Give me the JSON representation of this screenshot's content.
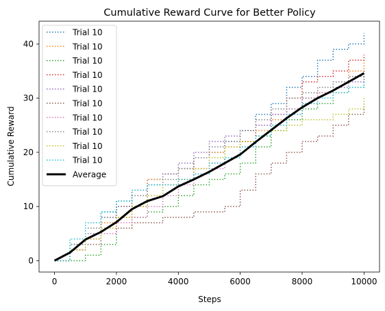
{
  "chart_data": {
    "type": "line",
    "title": "Cumulative Reward Curve for Better Policy",
    "xlabel": "Steps",
    "ylabel": "Cumulative Reward",
    "xlim": [
      -500,
      10500
    ],
    "ylim": [
      -2.1,
      44.2
    ],
    "xticks": [
      0,
      2000,
      4000,
      6000,
      8000,
      10000
    ],
    "yticks": [
      0,
      10,
      20,
      30,
      40
    ],
    "grid": false,
    "legend_position": "upper-left",
    "series": [
      {
        "name": "Trial 10",
        "color": "#1f77b4",
        "style": "dotted",
        "x": [
          0,
          500,
          1000,
          1500,
          2000,
          2500,
          3000,
          3500,
          4000,
          4500,
          5000,
          5500,
          6000,
          6500,
          7000,
          7500,
          8000,
          8500,
          9000,
          9500,
          10000
        ],
        "y": [
          0,
          3,
          6,
          9,
          11,
          13,
          15,
          16,
          17,
          19,
          20,
          22,
          24,
          27,
          29,
          32,
          34,
          37,
          39,
          40,
          42
        ]
      },
      {
        "name": "Trial 10",
        "color": "#ff7f0e",
        "style": "dotted",
        "x": [
          0,
          500,
          1000,
          1500,
          2000,
          2500,
          3000,
          3500,
          4000,
          4500,
          5000,
          5500,
          6000,
          6500,
          7000,
          7500,
          8000,
          8500,
          9000,
          9500,
          10000
        ],
        "y": [
          0,
          2,
          5,
          7,
          10,
          13,
          15,
          16,
          17,
          19,
          20,
          21,
          22,
          24,
          26,
          28,
          30,
          31,
          33,
          35,
          37
        ]
      },
      {
        "name": "Trial 10",
        "color": "#2ca02c",
        "style": "dotted",
        "x": [
          0,
          500,
          1000,
          1500,
          2000,
          2500,
          3000,
          3500,
          4000,
          4500,
          5000,
          5500,
          6000,
          6500,
          7000,
          7500,
          8000,
          8500,
          9000,
          9500,
          10000
        ],
        "y": [
          0,
          0,
          1,
          3,
          6,
          8,
          9,
          10,
          12,
          14,
          15,
          16,
          18,
          21,
          24,
          26,
          28,
          29,
          31,
          32,
          34
        ]
      },
      {
        "name": "Trial 10",
        "color": "#d62728",
        "style": "dotted",
        "x": [
          0,
          500,
          1000,
          1500,
          2000,
          2500,
          3000,
          3500,
          4000,
          4500,
          5000,
          5500,
          6000,
          6500,
          7000,
          7500,
          8000,
          8500,
          9000,
          9500,
          10000
        ],
        "y": [
          0,
          2,
          4,
          6,
          8,
          10,
          12,
          14,
          15,
          17,
          18,
          19,
          22,
          25,
          27,
          30,
          33,
          34,
          35,
          37,
          38
        ]
      },
      {
        "name": "Trial 10",
        "color": "#9467bd",
        "style": "dotted",
        "x": [
          0,
          500,
          1000,
          1500,
          2000,
          2500,
          3000,
          3500,
          4000,
          4500,
          5000,
          5500,
          6000,
          6500,
          7000,
          7500,
          8000,
          8500,
          9000,
          9500,
          10000
        ],
        "y": [
          0,
          3,
          5,
          8,
          10,
          12,
          14,
          16,
          18,
          20,
          22,
          23,
          24,
          25,
          27,
          28,
          30,
          31,
          32,
          33,
          34
        ]
      },
      {
        "name": "Trial 10",
        "color": "#8c564b",
        "style": "dotted",
        "x": [
          0,
          500,
          1000,
          1500,
          2000,
          2500,
          3000,
          3500,
          4000,
          4500,
          5000,
          5500,
          6000,
          6500,
          7000,
          7500,
          8000,
          8500,
          9000,
          9500,
          10000
        ],
        "y": [
          0,
          2,
          3,
          5,
          6,
          7,
          7,
          8,
          8,
          9,
          9,
          10,
          13,
          16,
          18,
          20,
          22,
          23,
          25,
          27,
          29
        ]
      },
      {
        "name": "Trial 10",
        "color": "#e377c2",
        "style": "dotted",
        "x": [
          0,
          500,
          1000,
          1500,
          2000,
          2500,
          3000,
          3500,
          4000,
          4500,
          5000,
          5500,
          6000,
          6500,
          7000,
          7500,
          8000,
          8500,
          9000,
          9500,
          10000
        ],
        "y": [
          0,
          2,
          4,
          5,
          7,
          8,
          10,
          12,
          14,
          16,
          17,
          19,
          21,
          23,
          25,
          27,
          29,
          31,
          33,
          34,
          35
        ]
      },
      {
        "name": "Trial 10",
        "color": "#7f7f7f",
        "style": "dotted",
        "x": [
          0,
          500,
          1000,
          1500,
          2000,
          2500,
          3000,
          3500,
          4000,
          4500,
          5000,
          5500,
          6000,
          6500,
          7000,
          7500,
          8000,
          8500,
          9000,
          9500,
          10000
        ],
        "y": [
          0,
          3,
          6,
          8,
          10,
          12,
          14,
          15,
          17,
          19,
          21,
          22,
          24,
          26,
          28,
          30,
          31,
          32,
          33,
          34,
          35
        ]
      },
      {
        "name": "Trial 10",
        "color": "#bcbd22",
        "style": "dotted",
        "x": [
          0,
          500,
          1000,
          1500,
          2000,
          2500,
          3000,
          3500,
          4000,
          4500,
          5000,
          5500,
          6000,
          6500,
          7000,
          7500,
          8000,
          8500,
          9000,
          9500,
          10000
        ],
        "y": [
          0,
          2,
          4,
          6,
          8,
          10,
          12,
          14,
          15,
          17,
          19,
          21,
          22,
          23,
          24,
          25,
          26,
          26,
          27,
          28,
          30
        ]
      },
      {
        "name": "Trial 10",
        "color": "#17becf",
        "style": "dotted",
        "x": [
          0,
          500,
          1000,
          1500,
          2000,
          2500,
          3000,
          3500,
          4000,
          4500,
          5000,
          5500,
          6000,
          6500,
          7000,
          7500,
          8000,
          8500,
          9000,
          9500,
          10000
        ],
        "y": [
          0,
          4,
          7,
          9,
          11,
          13,
          14,
          14,
          15,
          16,
          18,
          19,
          21,
          23,
          25,
          27,
          29,
          30,
          31,
          32,
          33
        ]
      },
      {
        "name": "Average",
        "color": "#000000",
        "style": "solid",
        "x": [
          0,
          500,
          1000,
          1500,
          2000,
          2500,
          3000,
          3500,
          4000,
          4500,
          5000,
          5500,
          6000,
          6500,
          7000,
          7500,
          8000,
          8500,
          9000,
          9500,
          10000
        ],
        "y": [
          0,
          1.5,
          3.9,
          5.3,
          7.1,
          9.5,
          11.0,
          11.9,
          13.7,
          15.0,
          16.4,
          18.0,
          19.6,
          21.9,
          24.1,
          26.3,
          28.3,
          30.0,
          31.4,
          33.0,
          34.6
        ]
      }
    ]
  }
}
